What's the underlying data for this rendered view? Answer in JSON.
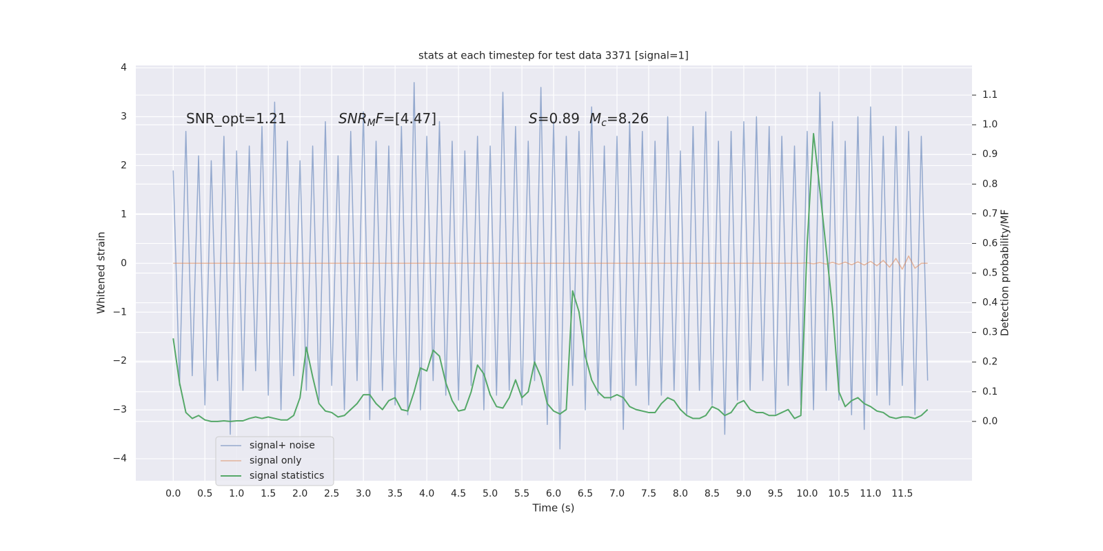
{
  "chart_data": {
    "type": "line",
    "title": "stats at each timestep for test data 3371 [signal=1]",
    "xlabel": "Time (s)",
    "ylabel": "Whitened strain",
    "y2label": "Detection probability/MF",
    "annotations": [
      [
        {
          "text": "SNR_opt=1.21"
        }
      ],
      [
        {
          "text": "SNR",
          "style": "italic"
        },
        {
          "text": "M",
          "style": "sub"
        },
        {
          "text": "F",
          "style": "italic"
        },
        {
          "text": "=[4.47]"
        }
      ],
      [
        {
          "text": "S",
          "style": "italic"
        },
        {
          "text": "=0.89"
        },
        {
          "text": "M",
          "style": "italic"
        },
        {
          "text": "c",
          "style": "sub"
        },
        {
          "text": "=8.26"
        }
      ]
    ],
    "x": [
      0,
      0.1,
      0.2,
      0.3,
      0.4,
      0.5,
      0.6,
      0.7,
      0.8,
      0.9,
      1,
      1.1,
      1.2,
      1.3,
      1.4,
      1.5,
      1.6,
      1.7,
      1.8,
      1.9,
      2,
      2.1,
      2.2,
      2.3,
      2.4,
      2.5,
      2.6,
      2.7,
      2.8,
      2.9,
      3,
      3.1,
      3.2,
      3.3,
      3.4,
      3.5,
      3.6,
      3.7,
      3.8,
      3.9,
      4,
      4.1,
      4.2,
      4.3,
      4.4,
      4.5,
      4.6,
      4.7,
      4.8,
      4.9,
      5,
      5.1,
      5.2,
      5.3,
      5.4,
      5.5,
      5.6,
      5.7,
      5.8,
      5.9,
      6,
      6.1,
      6.2,
      6.3,
      6.4,
      6.5,
      6.6,
      6.7,
      6.8,
      6.9,
      7,
      7.1,
      7.2,
      7.3,
      7.4,
      7.5,
      7.6,
      7.7,
      7.8,
      7.9,
      8,
      8.1,
      8.2,
      8.3,
      8.4,
      8.5,
      8.6,
      8.7,
      8.8,
      8.9,
      9,
      9.1,
      9.2,
      9.3,
      9.4,
      9.5,
      9.6,
      9.7,
      9.8,
      9.9,
      10,
      10.1,
      10.2,
      10.3,
      10.4,
      10.5,
      10.6,
      10.7,
      10.8,
      10.9,
      11,
      11.1,
      11.2,
      11.3,
      11.4,
      11.5,
      11.6,
      11.7,
      11.8,
      11.9
    ],
    "series": [
      {
        "name": "signal+ noise",
        "color": "#4c72b0",
        "values": [
          1.9,
          -2.5,
          2.7,
          -2.3,
          2.2,
          -2.9,
          2.1,
          -2.4,
          2.6,
          -3.5,
          2.3,
          -2.6,
          2.4,
          -2.2,
          2.8,
          -2.7,
          3.3,
          -3.0,
          2.5,
          -2.3,
          2.1,
          -2.6,
          2.4,
          -2.8,
          2.9,
          -2.5,
          2.2,
          -3.0,
          2.7,
          -2.4,
          3.1,
          -3.2,
          2.5,
          -2.6,
          2.4,
          -2.9,
          2.8,
          -3.1,
          3.7,
          -3.0,
          2.6,
          -2.4,
          2.9,
          -2.7,
          2.5,
          -2.8,
          2.3,
          -2.5,
          2.6,
          -3.0,
          2.4,
          -2.7,
          3.5,
          -2.6,
          2.8,
          -2.9,
          2.5,
          -2.4,
          3.6,
          -3.3,
          2.9,
          -3.8,
          2.6,
          -2.5,
          2.7,
          -3.0,
          3.2,
          -2.7,
          2.4,
          -2.8,
          2.6,
          -3.4,
          2.9,
          -2.5,
          2.7,
          -2.9,
          2.5,
          -2.7,
          3.0,
          -2.6,
          2.3,
          -3.1,
          2.8,
          -2.6,
          3.1,
          -2.9,
          2.5,
          -3.5,
          2.7,
          -2.8,
          2.9,
          -2.6,
          3.0,
          -2.4,
          2.8,
          -3.1,
          2.6,
          -2.5,
          2.4,
          -2.9,
          2.7,
          -3.0,
          3.5,
          -2.6,
          2.9,
          -2.8,
          2.5,
          -3.1,
          3.0,
          -3.4,
          3.2,
          -2.7,
          2.6,
          -2.9,
          2.8,
          -2.5,
          2.7,
          -3.1,
          2.6,
          -2.4
        ]
      },
      {
        "name": "signal only",
        "color": "#dd8452",
        "values": [
          0,
          0,
          0,
          0,
          0,
          0,
          0,
          0,
          0,
          0,
          0,
          0,
          0,
          0,
          0,
          0,
          0,
          0,
          0,
          0,
          0,
          0,
          0,
          0,
          0,
          0,
          0,
          0,
          0,
          0,
          0,
          0,
          0,
          0,
          0,
          0,
          0,
          0,
          0,
          0,
          0,
          0,
          0,
          0,
          0,
          0,
          0,
          0,
          0,
          0,
          0,
          0,
          0,
          0,
          0,
          0,
          0,
          0,
          0,
          0,
          0,
          0,
          0,
          0,
          0,
          0,
          0,
          0,
          0,
          0,
          0,
          0,
          0,
          0,
          0,
          0,
          0,
          0,
          0,
          0,
          0,
          0,
          0,
          0,
          0,
          0,
          0,
          0,
          0,
          0,
          0,
          0,
          0,
          0,
          0,
          0,
          0,
          0,
          0,
          0,
          0.01,
          -0.01,
          0.015,
          -0.015,
          0.02,
          -0.02,
          0.025,
          -0.03,
          0.03,
          -0.035,
          0.04,
          -0.05,
          0.06,
          -0.08,
          0.1,
          -0.12,
          0.15,
          -0.1,
          0,
          0
        ]
      },
      {
        "name": "signal statistics",
        "color": "#55a868",
        "axis": "y2",
        "values": [
          0.28,
          0.13,
          0.03,
          0.01,
          0.02,
          0.005,
          0,
          0,
          0.002,
          0,
          0.002,
          0.002,
          0.01,
          0.015,
          0.01,
          0.015,
          0.01,
          0.005,
          0.005,
          0.02,
          0.08,
          0.25,
          0.15,
          0.06,
          0.035,
          0.03,
          0.015,
          0.02,
          0.04,
          0.06,
          0.09,
          0.09,
          0.06,
          0.04,
          0.07,
          0.08,
          0.04,
          0.035,
          0.1,
          0.18,
          0.17,
          0.24,
          0.22,
          0.13,
          0.07,
          0.035,
          0.04,
          0.1,
          0.19,
          0.16,
          0.09,
          0.05,
          0.045,
          0.08,
          0.14,
          0.08,
          0.1,
          0.2,
          0.15,
          0.06,
          0.035,
          0.025,
          0.04,
          0.44,
          0.37,
          0.22,
          0.14,
          0.1,
          0.08,
          0.08,
          0.09,
          0.08,
          0.05,
          0.04,
          0.035,
          0.03,
          0.03,
          0.06,
          0.08,
          0.07,
          0.04,
          0.02,
          0.01,
          0.01,
          0.02,
          0.05,
          0.04,
          0.02,
          0.03,
          0.06,
          0.07,
          0.04,
          0.03,
          0.03,
          0.02,
          0.02,
          0.03,
          0.04,
          0.01,
          0.02,
          0.6,
          0.97,
          0.78,
          0.58,
          0.38,
          0.1,
          0.05,
          0.07,
          0.08,
          0.06,
          0.05,
          0.035,
          0.03,
          0.015,
          0.01,
          0.015,
          0.015,
          0.01,
          0.02,
          0.04
        ]
      }
    ],
    "xlim": [
      -0.59,
      12.6
    ],
    "xticks": [
      {
        "value": 0,
        "label": "0.0"
      },
      0.5,
      {
        "value": 1,
        "label": "1.0"
      },
      1.5,
      {
        "value": 2,
        "label": "2.0"
      },
      2.5,
      {
        "value": 3,
        "label": "3.0"
      },
      3.5,
      {
        "value": 4,
        "label": "4.0"
      },
      4.5,
      {
        "value": 5,
        "label": "5.0"
      },
      5.5,
      {
        "value": 6,
        "label": "6.0"
      },
      6.5,
      {
        "value": 7,
        "label": "7.0"
      },
      7.5,
      {
        "value": 8,
        "label": "8.0"
      },
      8.5,
      {
        "value": 9,
        "label": "9.0"
      },
      9.5,
      {
        "value": 10,
        "label": "10.0"
      },
      10.5,
      {
        "value": 11,
        "label": "11.0"
      },
      11.5
    ],
    "ylim": [
      -4.45,
      4.05
    ],
    "yticks": [
      {
        "value": -4,
        "label": "−4"
      },
      {
        "value": -3,
        "label": "−3"
      },
      {
        "value": -2,
        "label": "−2"
      },
      {
        "value": -1,
        "label": "−1"
      },
      0,
      1,
      2,
      3,
      4
    ],
    "y2lim": [
      -0.2,
      1.2
    ],
    "y2ticks": [
      {
        "value": 0,
        "label": "0.0"
      },
      0.1,
      0.2,
      0.3,
      0.4,
      0.5,
      0.6,
      0.7,
      0.8,
      0.9,
      {
        "value": 1,
        "label": "1.0"
      },
      1.1
    ],
    "grid": true,
    "legend": "lower left",
    "background": "#eaeaf2"
  }
}
